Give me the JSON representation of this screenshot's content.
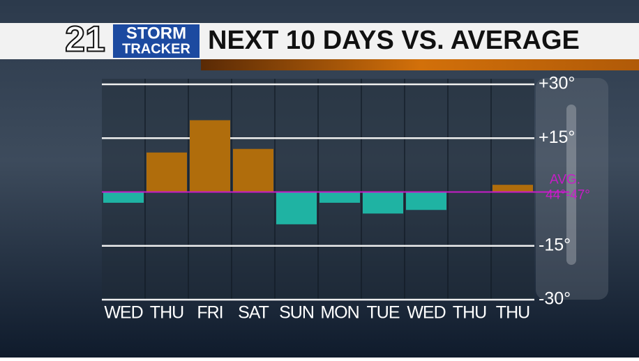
{
  "branding": {
    "number": "21",
    "line1": "STORM",
    "line2": "TRACKER"
  },
  "chart_data": {
    "type": "bar",
    "title": "NEXT 10 DAYS VS. AVERAGE",
    "categories": [
      "WED",
      "THU",
      "FRI",
      "SAT",
      "SUN",
      "MON",
      "TUE",
      "WED",
      "THU",
      "THU"
    ],
    "values": [
      -3,
      11,
      20,
      12,
      -9,
      -3,
      -6,
      -5,
      0,
      2
    ],
    "positive_color": "#b06d0c",
    "negative_color": "#1fb3a3",
    "ylim": [
      -30,
      30
    ],
    "yticks": [
      {
        "value": 30,
        "label": "+30°"
      },
      {
        "value": 15,
        "label": "+15°"
      },
      {
        "value": -15,
        "label": "-15°"
      },
      {
        "value": -30,
        "label": "-30°"
      }
    ],
    "grid": true,
    "average_label": "AVG.",
    "average_range": "44°-47°",
    "average_color": "#c81cc8"
  }
}
